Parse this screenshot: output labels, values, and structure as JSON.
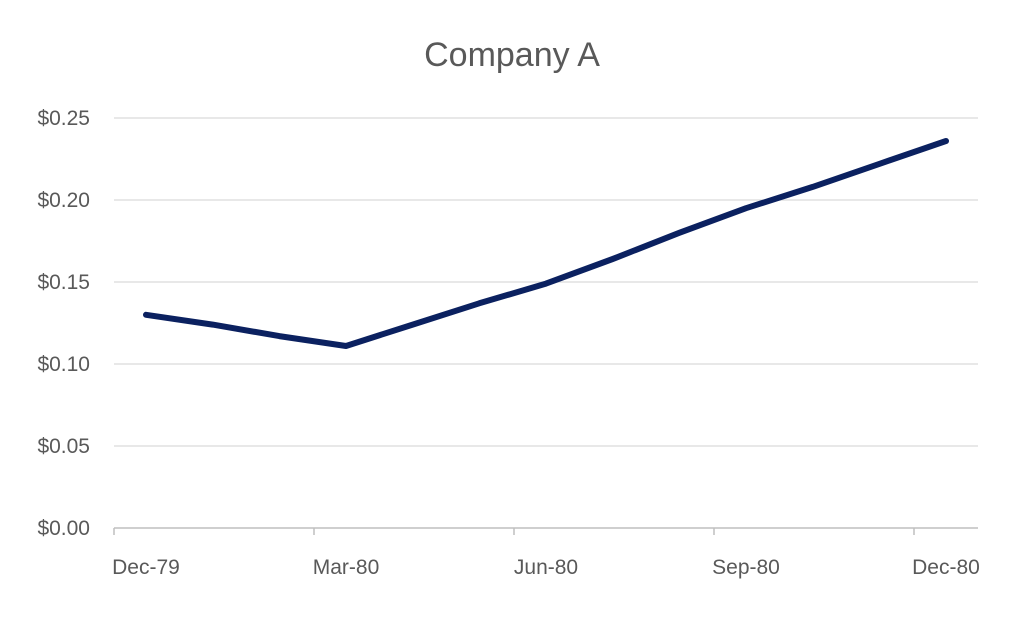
{
  "chart_data": {
    "type": "line",
    "title": "Company A",
    "xlabel": "",
    "ylabel": "",
    "categories": [
      "Dec-79",
      "Mar-80",
      "Jun-80",
      "Sep-80",
      "Dec-80"
    ],
    "x": [
      "1979-12",
      "1980-01",
      "1980-02",
      "1980-03",
      "1980-04",
      "1980-05",
      "1980-06",
      "1980-07",
      "1980-08",
      "1980-09",
      "1980-10",
      "1980-11",
      "1980-12"
    ],
    "series": [
      {
        "name": "",
        "values": [
          0.13,
          0.124,
          0.117,
          0.111,
          0.124,
          0.137,
          0.149,
          0.164,
          0.18,
          0.195,
          0.208,
          0.222,
          0.236
        ]
      }
    ],
    "yticks": [
      "$0.00",
      "$0.05",
      "$0.10",
      "$0.15",
      "$0.20",
      "$0.25"
    ],
    "ytick_values": [
      0,
      0.05,
      0.1,
      0.15,
      0.2,
      0.25
    ],
    "ylim": [
      0,
      0.25
    ],
    "grid": true,
    "legend": "none",
    "colors": {
      "line": "#0b2160",
      "grid": "#d9d9d9",
      "axis": "#bfbfbf",
      "text": "#595959"
    }
  }
}
